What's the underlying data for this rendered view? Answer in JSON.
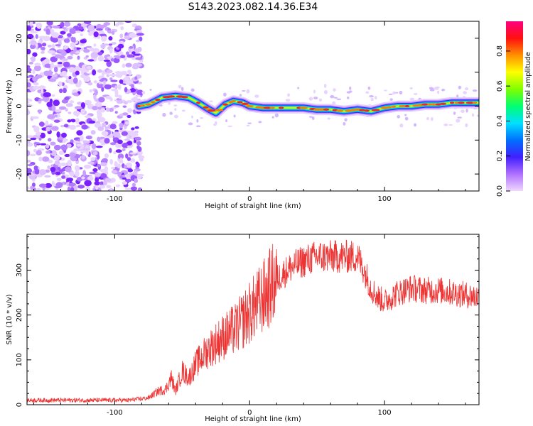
{
  "title": "S143.2023.082.14.36.E34",
  "chart_data": [
    {
      "type": "heatmap",
      "xlabel": "Height of straight line (km)",
      "ylabel": "Frequency (Hz)",
      "xlim": [
        -165,
        170
      ],
      "ylim": [
        -25,
        25
      ],
      "xticks": [
        -100,
        0,
        100
      ],
      "yticks": [
        -20,
        -10,
        0,
        10,
        20
      ],
      "colorbar": {
        "label": "Normalized spectral amplitude",
        "range": [
          0,
          0.97
        ],
        "ticks": [
          "0.0",
          "0.2",
          "0.4",
          "0.6",
          "0.8"
        ]
      },
      "noise_region_x": [
        -165,
        -80
      ],
      "ridge": {
        "x": [
          -82,
          -75,
          -65,
          -55,
          -45,
          -38,
          -30,
          -25,
          -18,
          -12,
          -5,
          0,
          10,
          20,
          30,
          40,
          50,
          60,
          70,
          80,
          90,
          100,
          110,
          120,
          130,
          140,
          150,
          160,
          170
        ],
        "freq": [
          0,
          0.5,
          2.5,
          3,
          2.5,
          1,
          -1,
          -2,
          0.5,
          1.5,
          1,
          0,
          -0.5,
          -0.5,
          -0.5,
          -0.5,
          -1,
          -1,
          -1.5,
          -1,
          -1.5,
          -0.5,
          0,
          0,
          0.5,
          0.5,
          1,
          1,
          1
        ]
      }
    },
    {
      "type": "line",
      "xlabel": "Height of straight line (km)",
      "ylabel": "SNR (10 * v/v)",
      "xlim": [
        -165,
        170
      ],
      "ylim": [
        0,
        380
      ],
      "xticks": [
        -100,
        0,
        100
      ],
      "yticks": [
        0,
        100,
        200,
        300
      ],
      "series": [
        {
          "color": "#ee3333",
          "x": [
            -165,
            -140,
            -110,
            -90,
            -75,
            -68,
            -62,
            -58,
            -55,
            -50,
            -45,
            -40,
            -30,
            -20,
            -10,
            0,
            10,
            20,
            30,
            40,
            50,
            60,
            70,
            80,
            85,
            90,
            95,
            100,
            110,
            120,
            130,
            140,
            150,
            160,
            170
          ],
          "y": [
            10,
            10,
            10,
            10,
            15,
            30,
            35,
            60,
            30,
            75,
            60,
            90,
            125,
            150,
            170,
            205,
            240,
            280,
            305,
            320,
            330,
            330,
            330,
            330,
            300,
            260,
            240,
            230,
            250,
            260,
            255,
            255,
            250,
            245,
            240
          ]
        }
      ]
    }
  ]
}
